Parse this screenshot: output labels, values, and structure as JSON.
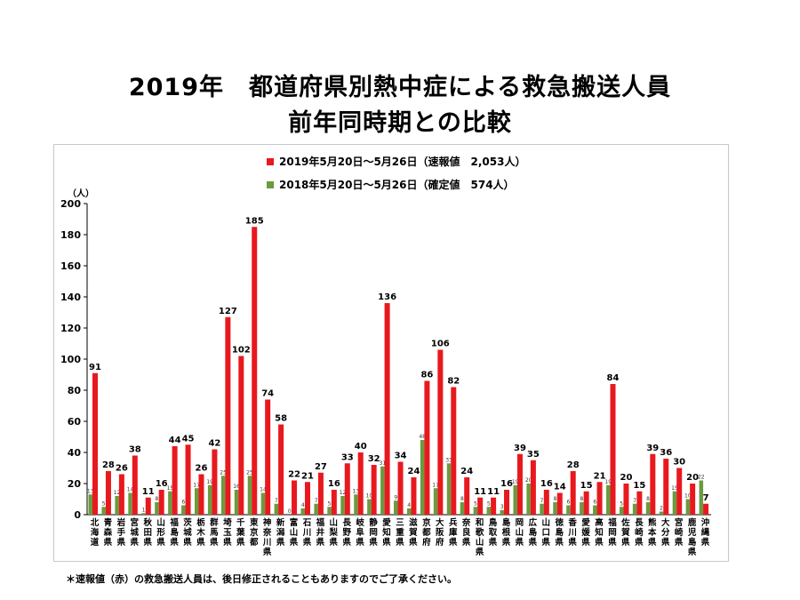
{
  "chart_data": {
    "type": "bar",
    "title": "2019年　都道府県別熱中症による救急搬送人員",
    "subtitle": "前年同時期との比較",
    "ylabel": "（人）",
    "ylim": [
      0,
      200
    ],
    "yticks": [
      0,
      20,
      40,
      60,
      80,
      100,
      120,
      140,
      160,
      180,
      200
    ],
    "grid": false,
    "legend_position": "top-center",
    "categories": [
      "北海道",
      "青森県",
      "岩手県",
      "宮城県",
      "秋田県",
      "山形県",
      "福島県",
      "茨城県",
      "栃木県",
      "群馬県",
      "埼玉県",
      "千葉県",
      "東京都",
      "神奈川県",
      "新潟県",
      "富山県",
      "石川県",
      "福井県",
      "山梨県",
      "長野県",
      "岐阜県",
      "静岡県",
      "愛知県",
      "三重県",
      "滋賀県",
      "京都府",
      "大阪府",
      "兵庫県",
      "奈良県",
      "和歌山県",
      "鳥取県",
      "島根県",
      "岡山県",
      "広島県",
      "山口県",
      "徳島県",
      "香川県",
      "愛媛県",
      "高知県",
      "福岡県",
      "佐賀県",
      "長崎県",
      "熊本県",
      "大分県",
      "宮崎県",
      "鹿児島県",
      "沖縄県"
    ],
    "series": [
      {
        "name": "2019年5月20日～5月26日（速報値　2,053人）",
        "color": "#e8191e",
        "values": [
          91,
          28,
          26,
          38,
          11,
          16,
          44,
          45,
          26,
          42,
          127,
          102,
          185,
          74,
          58,
          22,
          21,
          27,
          16,
          33,
          40,
          32,
          136,
          34,
          24,
          86,
          106,
          82,
          24,
          11,
          11,
          16,
          39,
          35,
          16,
          14,
          28,
          15,
          21,
          84,
          20,
          15,
          39,
          36,
          30,
          20,
          7
        ]
      },
      {
        "name": "2018年5月20日～5月26日（確定値　574人）",
        "color": "#6b9a3f",
        "values": [
          13,
          5,
          12,
          14,
          1,
          8,
          15,
          6,
          17,
          19,
          25,
          16,
          25,
          14,
          7,
          0,
          4,
          7,
          5,
          12,
          13,
          10,
          31,
          9,
          4,
          48,
          17,
          33,
          8,
          5,
          5,
          3,
          19,
          20,
          7,
          8,
          6,
          8,
          6,
          19,
          5,
          7,
          8,
          2,
          15,
          10,
          22
        ]
      }
    ]
  },
  "note": "＊速報値（赤）の救急搬送人員は、後日修正されることもありますのでご了承ください。"
}
